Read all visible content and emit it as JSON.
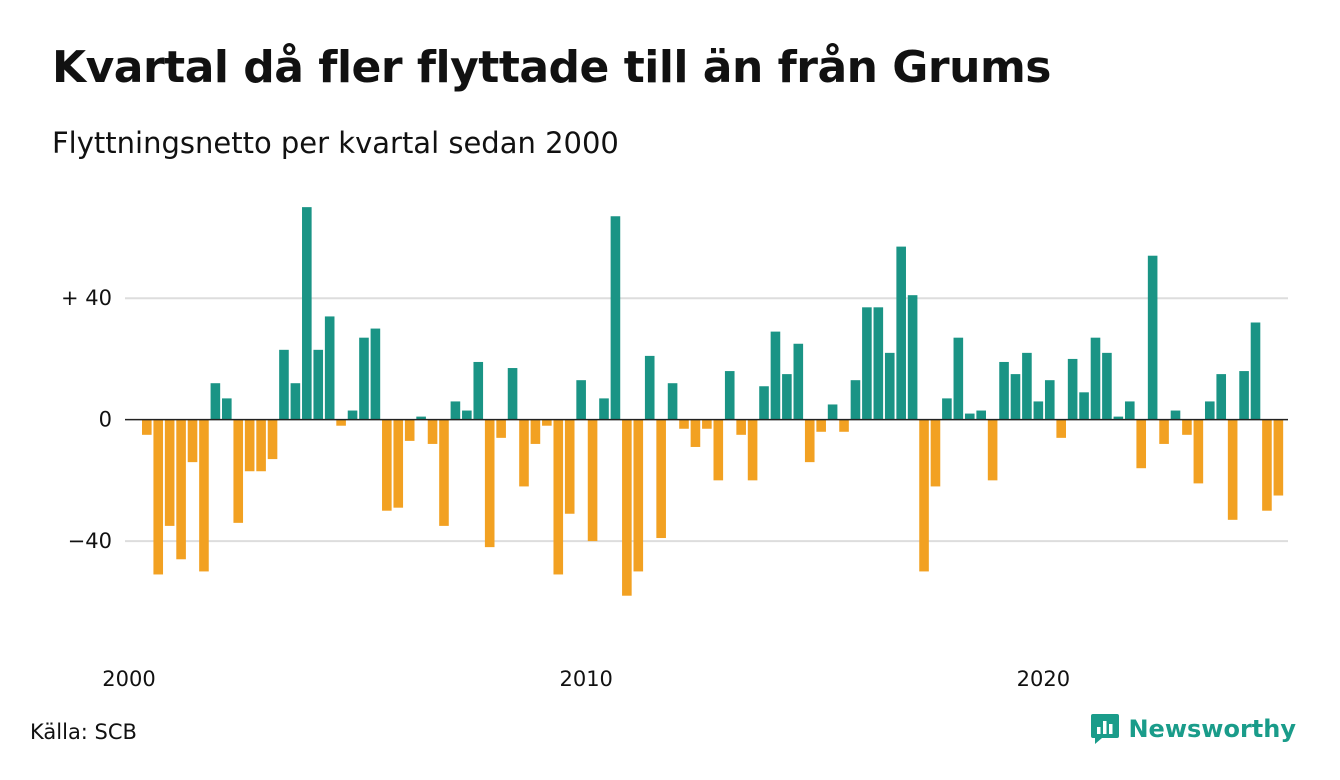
{
  "header": {
    "title": "Kvartal då fler flyttade till än från Grums",
    "subtitle": "Flyttningsnetto per kvartal sedan 2000"
  },
  "footer": {
    "source": "Källa: SCB",
    "brand": "Newsworthy"
  },
  "colors": {
    "positive": "#1a9485",
    "negative": "#f2a122",
    "brand": "#1a9c8a",
    "grid": "#dddddd"
  },
  "chart_data": {
    "type": "bar",
    "x_start": "2000 Q1",
    "x_tick_labels": [
      "2000",
      "2010",
      "2020"
    ],
    "y_tick_labels": [
      "+ 40",
      "0",
      "−40"
    ],
    "y_ticks": [
      40,
      0,
      -40
    ],
    "ylim": [
      -66,
      74
    ],
    "grid": true,
    "values": [
      -5,
      -51,
      -35,
      -46,
      -14,
      -50,
      12,
      7,
      -34,
      -17,
      -17,
      -13,
      23,
      12,
      70,
      23,
      34,
      -2,
      3,
      27,
      30,
      -30,
      -29,
      -7,
      1,
      -8,
      -35,
      6,
      3,
      19,
      -42,
      -6,
      17,
      -22,
      -8,
      -2,
      -51,
      -31,
      13,
      -40,
      7,
      67,
      -58,
      -50,
      21,
      -39,
      12,
      -3,
      -9,
      -3,
      -20,
      16,
      -5,
      -20,
      11,
      29,
      15,
      25,
      -14,
      -4,
      5,
      -4,
      13,
      37,
      37,
      22,
      57,
      41,
      -50,
      -22,
      7,
      27,
      2,
      3,
      -20,
      19,
      15,
      22,
      6,
      13,
      -6,
      20,
      9,
      27,
      22,
      1,
      6,
      -16,
      54,
      -8,
      3,
      -5,
      -21,
      6,
      15,
      -33,
      16,
      32,
      -30,
      -25
    ]
  }
}
